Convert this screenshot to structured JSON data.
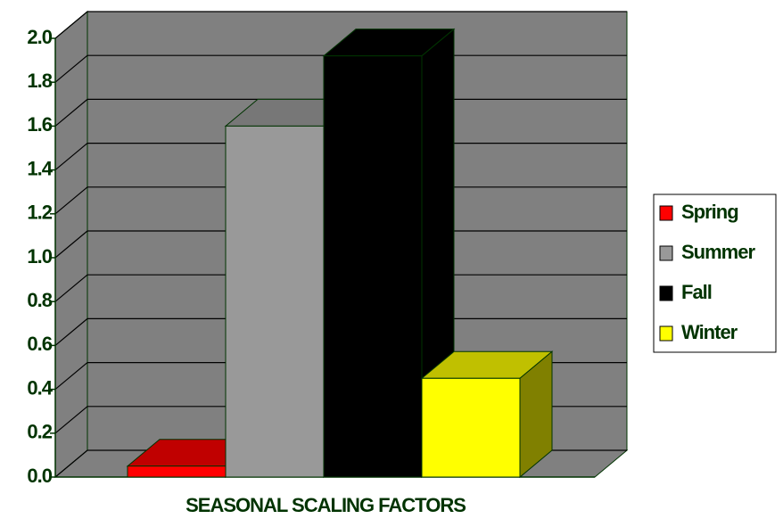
{
  "chart_data": {
    "type": "bar3d",
    "x_label": "SEASONAL SCALING FACTORS",
    "categories": [
      "Spring",
      "Summer",
      "Fall",
      "Winter"
    ],
    "values": [
      0.05,
      1.6,
      1.92,
      0.45
    ],
    "colors": [
      "#ff0000",
      "#999999",
      "#000000",
      "#ffff00"
    ],
    "top_colors": [
      "#c00000",
      "#777777",
      "#000000",
      "#c0c000"
    ],
    "side_colors": [
      "#800000",
      "#666666",
      "#000000",
      "#808000"
    ],
    "ylim": [
      0,
      2.0
    ],
    "yticks": [
      {
        "value": 0,
        "label": "0.0"
      },
      0.2,
      0.4,
      0.6,
      0.8,
      {
        "value": 1.0,
        "label": "1.0"
      },
      1.2,
      1.4,
      1.6,
      1.8,
      {
        "value": 2.0,
        "label": "2.0"
      }
    ],
    "grid": true,
    "legend": "right"
  }
}
